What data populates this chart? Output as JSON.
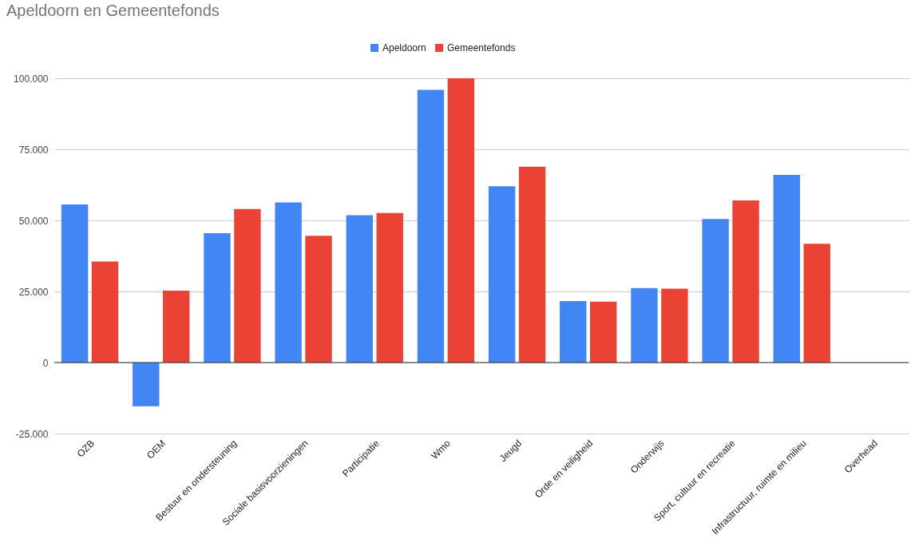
{
  "chart_data": {
    "type": "bar",
    "title": "Apeldoorn en Gemeentefonds",
    "categories": [
      "OZB",
      "OEM",
      "Bestuur en ondersteuning",
      "Sociale basisvoorzieningen",
      "Participatie",
      "Wmo",
      "Jeugd",
      "Orde en veiligheid",
      "Onderwijs",
      "Sport, cultuur en recreatie",
      "Infrastructuur, ruimte en milieu",
      "Overhead"
    ],
    "series": [
      {
        "name": "Apeldoorn",
        "color": "#4285f4",
        "values": [
          55600,
          -15400,
          45500,
          56300,
          51800,
          95900,
          62000,
          21600,
          26200,
          50500,
          66000,
          null
        ]
      },
      {
        "name": "Gemeentefonds",
        "color": "#ea4335",
        "values": [
          35500,
          25300,
          54000,
          44600,
          52600,
          100000,
          68900,
          21400,
          26000,
          57000,
          41800,
          null
        ]
      }
    ],
    "ylim": [
      -25000,
      100000
    ],
    "yticks": [
      {
        "value": -25000,
        "label": "-25.000"
      },
      0,
      {
        "value": 25000,
        "label": "25.000"
      },
      {
        "value": 50000,
        "label": "50.000"
      },
      {
        "value": 75000,
        "label": "75.000"
      },
      {
        "value": 100000,
        "label": "100.000"
      }
    ],
    "grid": "y",
    "legend": "top"
  }
}
